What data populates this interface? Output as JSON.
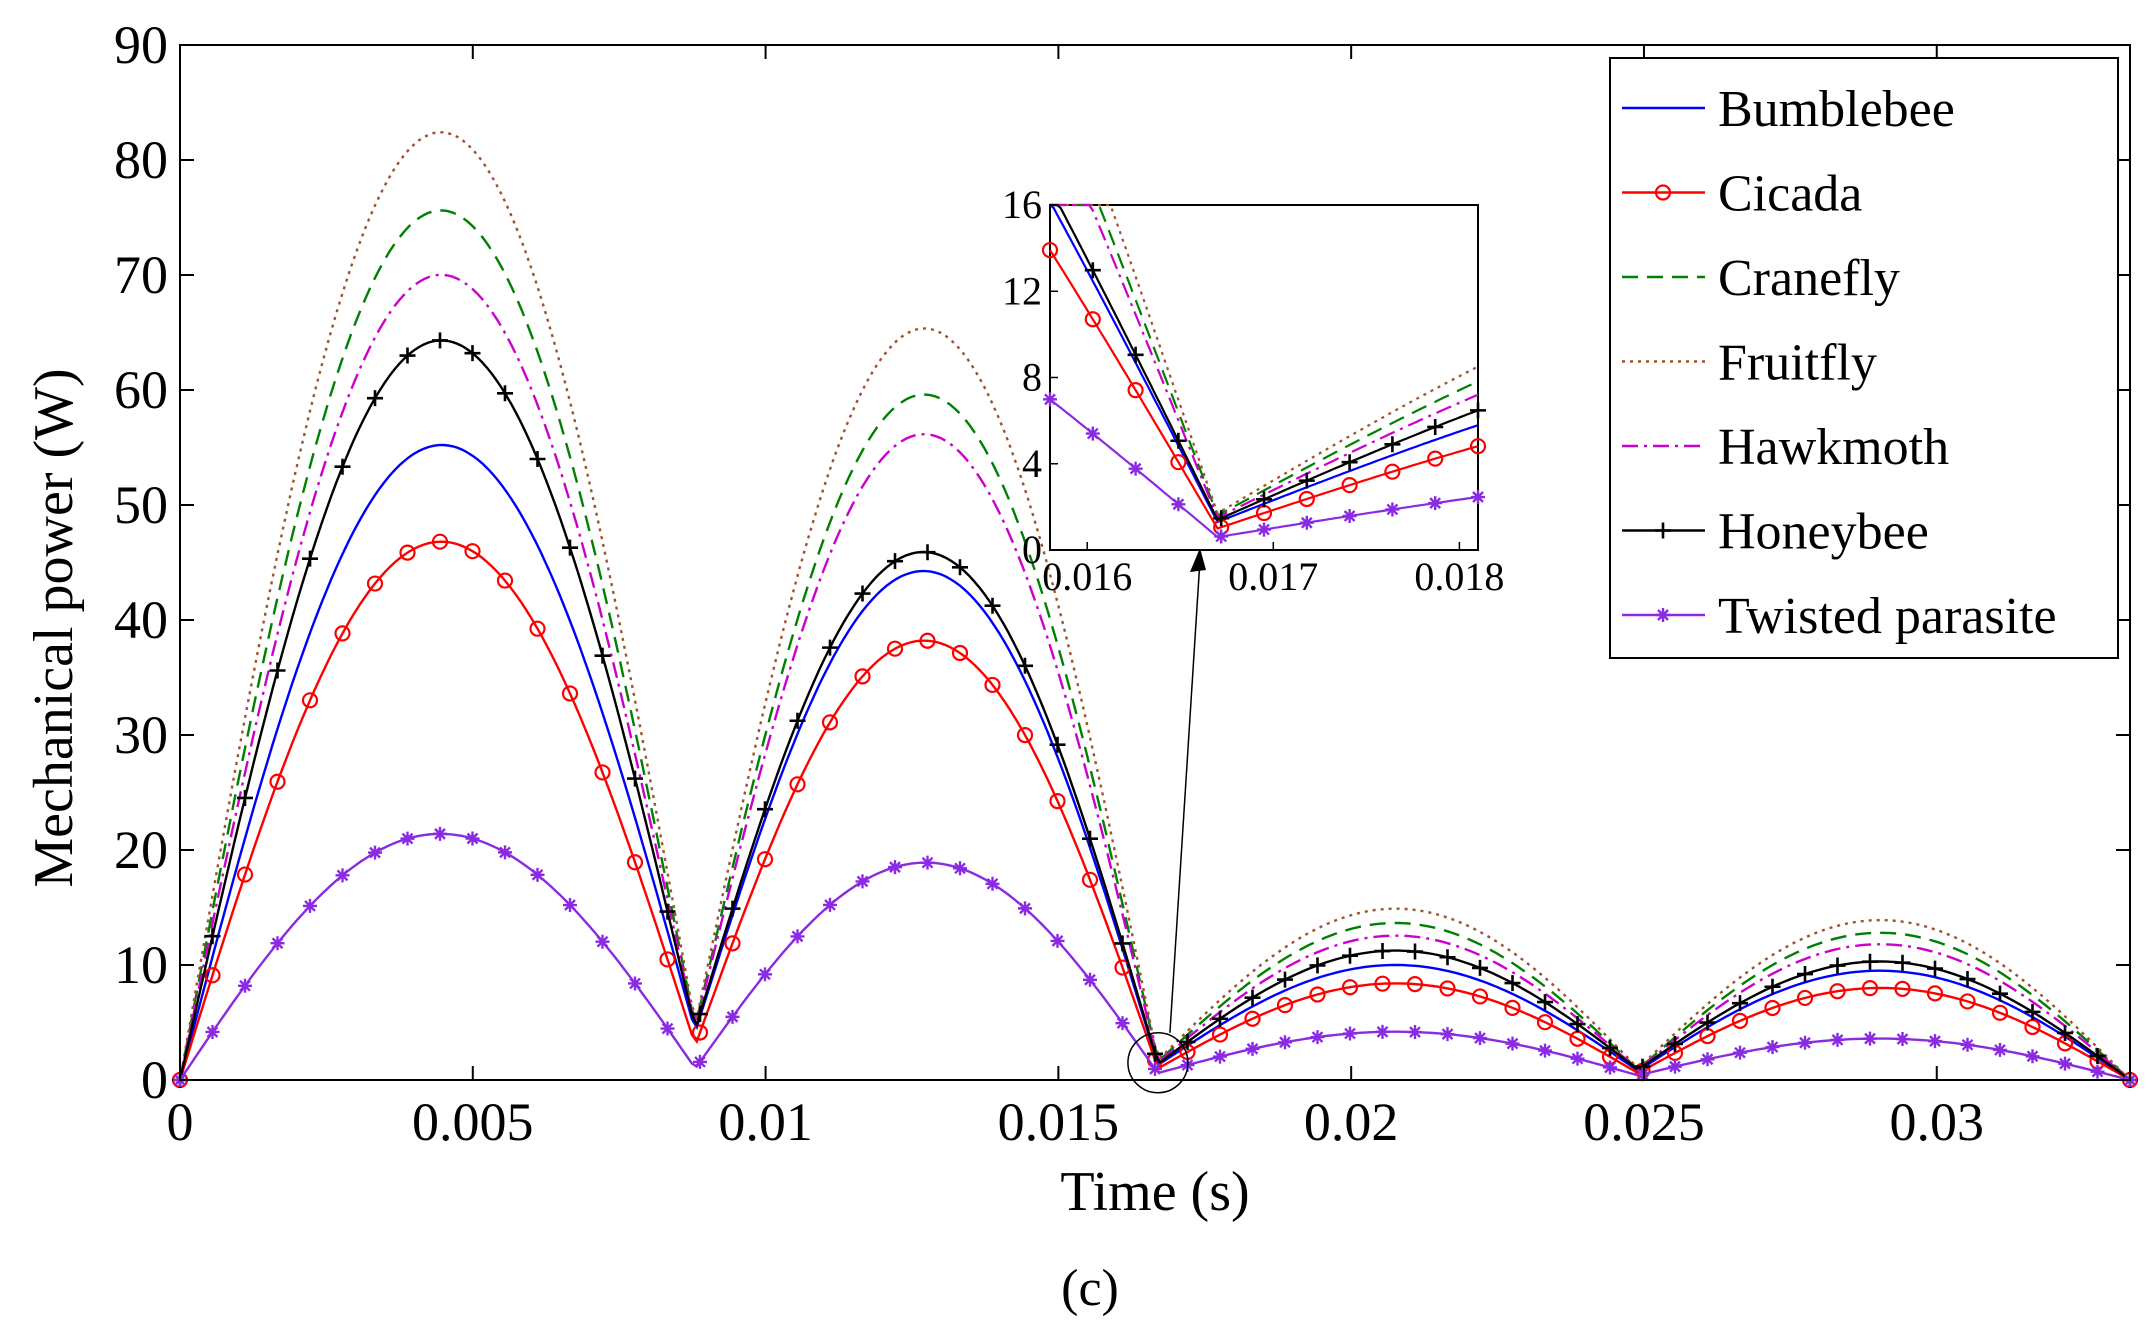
{
  "chart_data": {
    "type": "line",
    "title": "",
    "xlabel": "Time (s)",
    "ylabel": "Mechanical power (W)",
    "panel_label": "(c)",
    "xlim": [
      0,
      0.0333
    ],
    "ylim": [
      0,
      90
    ],
    "xticks": [
      0,
      0.005,
      0.01,
      0.015,
      0.02,
      0.025,
      0.03
    ],
    "xtick_labels": [
      "0",
      "0.005",
      "0.01",
      "0.015",
      "0.02",
      "0.025",
      "0.03"
    ],
    "yticks": [
      0,
      10,
      20,
      30,
      40,
      50,
      60,
      70,
      80,
      90
    ],
    "ytick_labels": [
      "0",
      "10",
      "20",
      "30",
      "40",
      "50",
      "60",
      "70",
      "80",
      "90"
    ],
    "legend_position": "top-right",
    "series": [
      {
        "name": "Bumblebee",
        "color": "#0000ff",
        "dash": "solid",
        "marker": "none",
        "peaks": [
          55.2,
          43.6,
          9.6,
          9.5
        ],
        "mins": [
          4.2,
          1.3,
          0.8
        ]
      },
      {
        "name": "Cicada",
        "color": "#ff0000",
        "dash": "solid",
        "marker": "circle",
        "peaks": [
          46.8,
          37.7,
          8.1,
          8.0
        ],
        "mins": [
          3.0,
          1.0,
          0.6
        ]
      },
      {
        "name": "Cranefly",
        "color": "#008000",
        "dash": "dashed",
        "marker": "none",
        "peaks": [
          75.6,
          58.8,
          13.2,
          12.8
        ],
        "mins": [
          4.6,
          1.6,
          0.9
        ]
      },
      {
        "name": "Fruitfly",
        "color": "#a0522d",
        "dash": "dotted",
        "marker": "none",
        "peaks": [
          82.4,
          64.5,
          14.4,
          13.9
        ],
        "mins": [
          4.8,
          1.7,
          1.0
        ]
      },
      {
        "name": "Hawkmoth",
        "color": "#cc00cc",
        "dash": "dashdot",
        "marker": "none",
        "peaks": [
          70.0,
          55.4,
          12.1,
          11.8
        ],
        "mins": [
          4.5,
          1.5,
          0.9
        ]
      },
      {
        "name": "Honeybee",
        "color": "#000000",
        "dash": "solid",
        "marker": "plus",
        "peaks": [
          64.3,
          45.2,
          10.8,
          10.3
        ],
        "mins": [
          4.4,
          1.4,
          0.9
        ]
      },
      {
        "name": "Twisted parasite",
        "color": "#8a2be2",
        "dash": "solid",
        "marker": "star",
        "peaks": [
          21.4,
          18.6,
          4.0,
          3.6
        ],
        "mins": [
          1.0,
          0.6,
          0.4
        ]
      }
    ],
    "inset": {
      "xlim": [
        0.0158,
        0.0181
      ],
      "ylim": [
        0,
        16
      ],
      "xticks": [
        0.016,
        0.017,
        0.018
      ],
      "xtick_labels": [
        "0.016",
        "0.017",
        "0.018"
      ],
      "yticks": [
        0,
        4,
        8,
        12,
        16
      ],
      "ytick_labels": [
        "0",
        "4",
        "8",
        "12",
        "16"
      ],
      "note": "zoom of the minimum near t = 0.0167 s"
    }
  }
}
